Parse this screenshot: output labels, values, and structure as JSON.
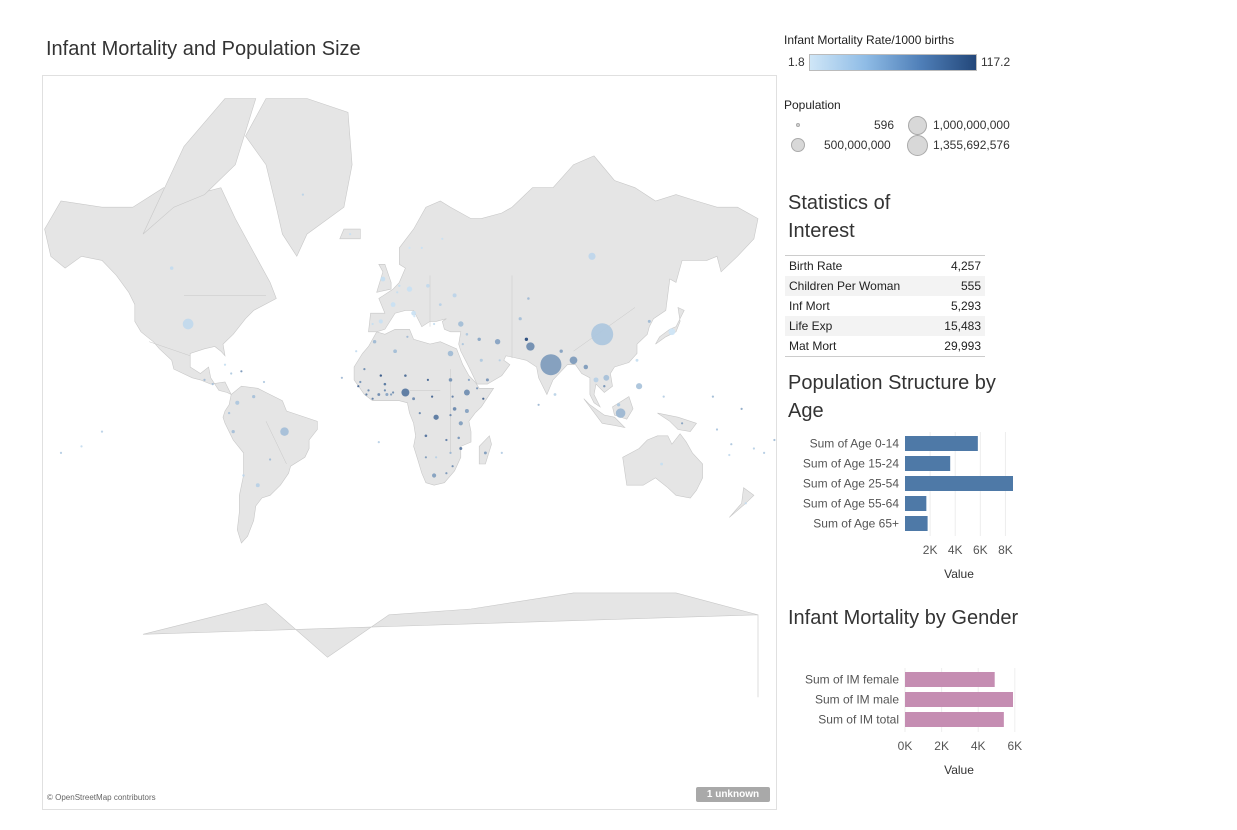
{
  "dashboard": {
    "title": "Infant Mortality and Population Size",
    "attribution": "© OpenStreetMap contributors",
    "unknown_badge": "1 unknown"
  },
  "colors": {
    "land": "#e5e5e5",
    "land_border": "#c8c8c8",
    "bar_blue": "#4e79a7",
    "bar_pink": "#c58db2",
    "ramp_low": "#cfe6f7",
    "ramp_high": "#23477a"
  },
  "color_legend": {
    "title": "Infant Mortality Rate/1000 births",
    "min_label": "1.8",
    "max_label": "117.2"
  },
  "size_legend": {
    "title": "Population",
    "items": [
      {
        "label": "596"
      },
      {
        "label": "500,000,000"
      },
      {
        "label": "1,000,000,000"
      },
      {
        "label": "1,355,692,576"
      }
    ]
  },
  "stats": {
    "title": "Statistics of Interest",
    "rows": [
      {
        "label": "Birth Rate",
        "value": "4,257"
      },
      {
        "label": "Children Per Woman",
        "value": "555"
      },
      {
        "label": "Inf Mort",
        "value": "5,293"
      },
      {
        "label": "Life Exp",
        "value": "15,483"
      },
      {
        "label": "Mat Mort",
        "value": "29,993"
      }
    ]
  },
  "chart_data": [
    {
      "type": "scatter",
      "title": "Infant Mortality and Population Size",
      "note": "Map of countries; circle size = Population, circle color = Infant Mortality Rate/1000 births",
      "points": [
        {
          "lon": 104,
          "lat": 35,
          "population": 1355692576,
          "imr": 15
        },
        {
          "lon": 79,
          "lat": 22,
          "population": 1236344631,
          "imr": 44
        },
        {
          "lon": -98,
          "lat": 39,
          "population": 318892103,
          "imr": 6
        },
        {
          "lon": 113,
          "lat": -1,
          "population": 253609643,
          "imr": 25
        },
        {
          "lon": -51,
          "lat": -10,
          "population": 202656788,
          "imr": 20
        },
        {
          "lon": 69,
          "lat": 30,
          "population": 196174380,
          "imr": 57
        },
        {
          "lon": 8,
          "lat": 9,
          "population": 177155754,
          "imr": 74
        },
        {
          "lon": 90,
          "lat": 24,
          "population": 166280712,
          "imr": 45
        },
        {
          "lon": 99,
          "lat": 60,
          "population": 142470272,
          "imr": 7
        },
        {
          "lon": 138,
          "lat": 36,
          "population": 127103388,
          "imr": 2
        },
        {
          "lon": 38,
          "lat": 9,
          "population": 96633458,
          "imr": 55
        },
        {
          "lon": 122,
          "lat": 12,
          "population": 107668231,
          "imr": 18
        },
        {
          "lon": 30,
          "lat": 27,
          "population": 86895099,
          "imr": 22
        },
        {
          "lon": 106,
          "lat": 16,
          "population": 93421835,
          "imr": 19
        },
        {
          "lon": 10,
          "lat": 51,
          "population": 80996685,
          "imr": 3
        },
        {
          "lon": 35,
          "lat": 39,
          "population": 81619392,
          "imr": 21
        },
        {
          "lon": 53,
          "lat": 32,
          "population": 80840713,
          "imr": 39
        },
        {
          "lon": 101,
          "lat": 15,
          "population": 67741401,
          "imr": 10
        },
        {
          "lon": 2,
          "lat": 46,
          "population": 66259012,
          "imr": 3
        },
        {
          "lon": -3,
          "lat": 54,
          "population": 63742977,
          "imr": 4
        },
        {
          "lon": 12,
          "lat": 43,
          "population": 61680122,
          "imr": 3
        },
        {
          "lon": 22,
          "lat": -30,
          "population": 48375645,
          "imr": 42
        },
        {
          "lon": 35,
          "lat": -6,
          "population": 49639138,
          "imr": 43
        },
        {
          "lon": 96,
          "lat": 21,
          "population": 55746253,
          "imr": 45
        },
        {
          "lon": 38,
          "lat": 0,
          "population": 45010056,
          "imr": 40
        },
        {
          "lon": -74,
          "lat": 4,
          "population": 46245297,
          "imr": 15
        },
        {
          "lon": -4,
          "lat": 40,
          "population": 47737941,
          "imr": 3
        },
        {
          "lon": 32,
          "lat": 49,
          "population": 44291413,
          "imr": 8
        },
        {
          "lon": 30,
          "lat": 15,
          "population": 35482233,
          "imr": 52
        },
        {
          "lon": -64,
          "lat": -34,
          "population": 43024374,
          "imr": 10
        },
        {
          "lon": 3,
          "lat": 28,
          "population": 38813722,
          "imr": 21
        },
        {
          "lon": 32,
          "lat": 1,
          "population": 35918915,
          "imr": 60
        },
        {
          "lon": 44,
          "lat": 33,
          "population": 32585692,
          "imr": 37
        },
        {
          "lon": 19,
          "lat": 52,
          "population": 38346279,
          "imr": 6
        },
        {
          "lon": -106,
          "lat": 57,
          "population": 34834841,
          "imr": 5
        },
        {
          "lon": -7,
          "lat": 32,
          "population": 32987206,
          "imr": 24
        },
        {
          "lon": 64,
          "lat": 41,
          "population": 28929716,
          "imr": 20
        },
        {
          "lon": 45,
          "lat": 24,
          "population": 27345986,
          "imr": 14
        },
        {
          "lon": 84,
          "lat": 28,
          "population": 30986975,
          "imr": 40
        },
        {
          "lon": -66,
          "lat": 7,
          "population": 28868486,
          "imr": 19
        },
        {
          "lon": 112,
          "lat": 3,
          "population": 30073353,
          "imr": 14
        },
        {
          "lon": 67,
          "lat": 33,
          "population": 31822848,
          "imr": 117.2
        },
        {
          "lon": -76,
          "lat": -10,
          "population": 30147935,
          "imr": 20
        },
        {
          "lon": -1,
          "lat": 8,
          "population": 25758108,
          "imr": 38
        },
        {
          "lon": 48,
          "lat": 15,
          "population": 26052966,
          "imr": 50
        },
        {
          "lon": 35,
          "lat": -18,
          "population": 24692144,
          "imr": 72
        },
        {
          "lon": 133,
          "lat": -25,
          "population": 22507617,
          "imr": 4
        },
        {
          "lon": 127,
          "lat": 40,
          "population": 24851627,
          "imr": 24
        },
        {
          "lon": 121,
          "lat": 24,
          "population": 23359928,
          "imr": 4
        },
        {
          "lon": -5,
          "lat": 8,
          "population": 22848945,
          "imr": 60
        },
        {
          "lon": 12,
          "lat": 6,
          "population": 23130708,
          "imr": 58
        },
        {
          "lon": 47,
          "lat": -20,
          "population": 23201926,
          "imr": 44
        },
        {
          "lon": 38,
          "lat": 35,
          "population": 17951639,
          "imr": 15
        },
        {
          "lon": 81,
          "lat": 8,
          "population": 21866445,
          "imr": 9
        },
        {
          "lon": 25,
          "lat": 46,
          "population": 21729871,
          "imr": 10
        },
        {
          "lon": 18,
          "lat": -12,
          "population": 19088106,
          "imr": 79
        },
        {
          "lon": 8,
          "lat": 17,
          "population": 17466172,
          "imr": 86
        },
        {
          "lon": -2,
          "lat": 13,
          "population": 18365123,
          "imr": 76
        },
        {
          "lon": -71,
          "lat": -30,
          "population": 17363894,
          "imr": 7
        },
        {
          "lon": 68,
          "lat": 48,
          "population": 17948816,
          "imr": 23
        },
        {
          "lon": 34,
          "lat": -13,
          "population": 17377468,
          "imr": 48
        },
        {
          "lon": -4,
          "lat": 17,
          "population": 16455903,
          "imr": 104
        },
        {
          "lon": -90,
          "lat": 15,
          "population": 14647083,
          "imr": 23
        },
        {
          "lon": 5,
          "lat": 52,
          "population": 16877351,
          "imr": 4
        },
        {
          "lon": -78,
          "lat": -1,
          "population": 15654411,
          "imr": 17
        },
        {
          "lon": 105,
          "lat": 12,
          "population": 15458332,
          "imr": 52
        },
        {
          "lon": 28,
          "lat": -14,
          "population": 14638505,
          "imr": 67
        },
        {
          "lon": -14,
          "lat": 14,
          "population": 13635927,
          "imr": 53
        },
        {
          "lon": 19,
          "lat": 15,
          "population": 11412107,
          "imr": 90
        },
        {
          "lon": 30,
          "lat": -20,
          "population": 13771721,
          "imr": 26
        },
        {
          "lon": 46,
          "lat": 6,
          "population": 10428043,
          "imr": 100
        },
        {
          "lon": -80,
          "lat": 22,
          "population": 11047251,
          "imr": 4
        },
        {
          "lon": 30,
          "lat": -2,
          "population": 12337138,
          "imr": 60
        },
        {
          "lon": 9,
          "lat": 34,
          "population": 10937521,
          "imr": 23
        },
        {
          "lon": -2,
          "lat": 10,
          "population": 10160556,
          "imr": 57
        },
        {
          "lon": 2,
          "lat": 9,
          "population": 10160556,
          "imr": 57
        },
        {
          "lon": 22,
          "lat": 39,
          "population": 10775557,
          "imr": 4
        },
        {
          "lon": 4,
          "lat": 50,
          "population": 10449361,
          "imr": 4
        },
        {
          "lon": -8,
          "lat": 39,
          "population": 10813834,
          "imr": 4
        },
        {
          "lon": -72,
          "lat": 19,
          "population": 9996731,
          "imr": 49
        },
        {
          "lon": 16,
          "lat": 62,
          "population": 9723809,
          "imr": 3
        },
        {
          "lon": 23,
          "lat": -22,
          "population": 2155784,
          "imr": 10
        },
        {
          "lon": -58,
          "lat": -23,
          "population": 6703860,
          "imr": 22
        },
        {
          "lon": 54,
          "lat": 24,
          "population": 5628805,
          "imr": 11
        },
        {
          "lon": 36,
          "lat": 31,
          "population": 7930491,
          "imr": 16
        },
        {
          "lon": -86,
          "lat": 13,
          "population": 5848641,
          "imr": 20
        },
        {
          "lon": 10,
          "lat": 62,
          "population": 5147792,
          "imr": 2
        },
        {
          "lon": 26,
          "lat": 64,
          "population": 5268799,
          "imr": 3
        },
        {
          "lon": 174,
          "lat": -41,
          "population": 4401916,
          "imr": 5
        },
        {
          "lon": 143,
          "lat": -6,
          "population": 6552730,
          "imr": 40
        },
        {
          "lon": 178,
          "lat": -18,
          "population": 903207,
          "imr": 10
        },
        {
          "lon": 160,
          "lat": -9,
          "population": 609883,
          "imr": 17
        },
        {
          "lon": 167,
          "lat": -16,
          "population": 266937,
          "imr": 16
        },
        {
          "lon": -172,
          "lat": -14,
          "population": 196628,
          "imr": 21
        },
        {
          "lon": 172,
          "lat": 1,
          "population": 104488,
          "imr": 34
        },
        {
          "lon": -160,
          "lat": -20,
          "population": 106501,
          "imr": 12
        },
        {
          "lon": 134,
          "lat": 7,
          "population": 21186,
          "imr": 11
        },
        {
          "lon": 158,
          "lat": 7,
          "population": 105681,
          "imr": 22
        },
        {
          "lon": 12.4,
          "lat": 41.9,
          "population": 596,
          "imr": 1.8
        },
        {
          "lon": -61,
          "lat": 14,
          "population": 163362,
          "imr": 13
        },
        {
          "lon": -77,
          "lat": 18,
          "population": 2930050,
          "imr": 14
        },
        {
          "lon": -16,
          "lat": 28,
          "population": 500000,
          "imr": 5
        },
        {
          "lon": -23,
          "lat": 16,
          "population": 538535,
          "imr": 23
        },
        {
          "lon": 55,
          "lat": -20,
          "population": 1331155,
          "imr": 12
        },
        {
          "lon": 73,
          "lat": 3,
          "population": 393595,
          "imr": 25
        },
        {
          "lon": -19,
          "lat": 65,
          "population": 317351,
          "imr": 3
        },
        {
          "lon": -42,
          "lat": 72,
          "population": 57728,
          "imr": 9
        },
        {
          "lon": -5,
          "lat": -15,
          "population": 7776,
          "imr": 10
        },
        {
          "lon": -150,
          "lat": -17,
          "population": 280026,
          "imr": 5
        },
        {
          "lon": -177,
          "lat": -20,
          "population": 106440,
          "imr": 12
        },
        {
          "lon": -140,
          "lat": -10,
          "population": 10000,
          "imr": 10
        },
        {
          "lon": 166,
          "lat": -21,
          "population": 267840,
          "imr": 5
        },
        {
          "lon": -8,
          "lat": 6,
          "population": 4092310,
          "imr": 70
        },
        {
          "lon": -11,
          "lat": 8,
          "population": 5743725,
          "imr": 73
        },
        {
          "lon": -10,
          "lat": 10,
          "population": 11474383,
          "imr": 55
        },
        {
          "lon": 1,
          "lat": 8,
          "population": 7351374,
          "imr": 44
        },
        {
          "lon": 15,
          "lat": -1,
          "population": 4662446,
          "imr": 59
        },
        {
          "lon": 21,
          "lat": 7,
          "population": 5277959,
          "imr": 92
        },
        {
          "lon": 23,
          "lat": -3,
          "population": 77433744,
          "imr": 73
        },
        {
          "lon": 18,
          "lat": -22,
          "population": 2198406,
          "imr": 45
        },
        {
          "lon": 39,
          "lat": 15,
          "population": 6380803,
          "imr": 38
        },
        {
          "lon": 43,
          "lat": 11,
          "population": 810179,
          "imr": 50
        },
        {
          "lon": 28,
          "lat": -29,
          "population": 1942008,
          "imr": 49
        },
        {
          "lon": 31,
          "lat": -26,
          "population": 1419623,
          "imr": 57
        },
        {
          "lon": -15,
          "lat": 12,
          "population": 1693398,
          "imr": 89
        },
        {
          "lon": -12,
          "lat": 20,
          "population": 3516806,
          "imr": 56
        },
        {
          "lon": 31,
          "lat": 7,
          "population": 11562695,
          "imr": 68
        }
      ]
    },
    {
      "type": "bar",
      "title": "Population Structure by Age",
      "categories": [
        "Sum of Age 0-14",
        "Sum of Age 15-24",
        "Sum of Age 25-54",
        "Sum of Age 55-64",
        "Sum of Age 65+"
      ],
      "values": [
        5800,
        3600,
        8600,
        1700,
        1800
      ],
      "xlabel": "Value",
      "ticks": [
        2000,
        4000,
        6000,
        8000
      ],
      "tick_labels": [
        "2K",
        "4K",
        "6K",
        "8K"
      ],
      "xlim": [
        0,
        8600
      ]
    },
    {
      "type": "bar",
      "title": "Infant Mortality by Gender",
      "categories": [
        "Sum of IM female",
        "Sum of IM male",
        "Sum of IM total"
      ],
      "values": [
        4900,
        5900,
        5400
      ],
      "xlabel": "Value",
      "ticks": [
        0,
        2000,
        4000,
        6000
      ],
      "tick_labels": [
        "0K",
        "2K",
        "4K",
        "6K"
      ],
      "xlim": [
        0,
        5900
      ]
    }
  ]
}
